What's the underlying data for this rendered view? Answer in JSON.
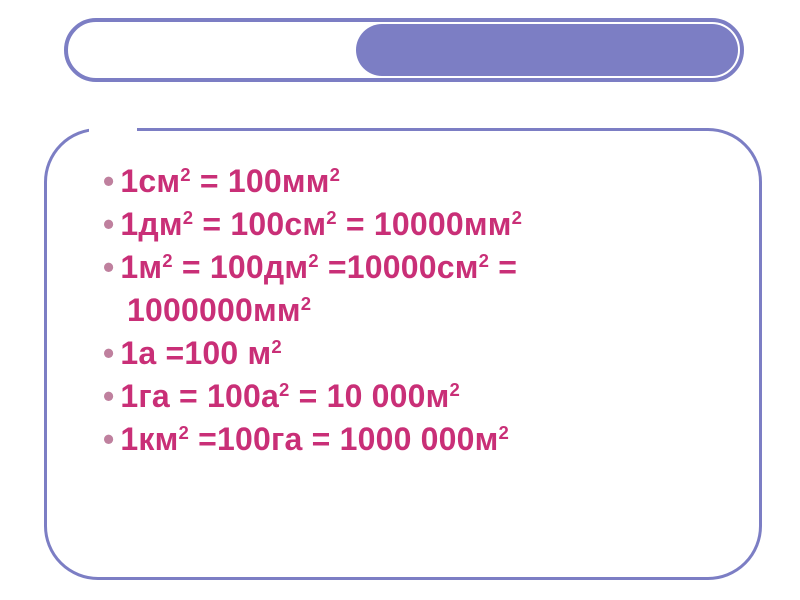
{
  "colors": {
    "header_border": "#7c7ec4",
    "header_fill": "#7c7ec4",
    "frame_border": "#7c7ec4",
    "bullet": "#bf809e",
    "text": "#c92f77",
    "background": "#ffffff"
  },
  "typography": {
    "font_family": "Arial, sans-serif",
    "font_size_pt": 24,
    "font_weight": "bold"
  },
  "layout": {
    "slide_width": 800,
    "slide_height": 600,
    "frame_radius": 54
  },
  "content": {
    "type": "bulleted-equations",
    "lines": [
      {
        "bullet": true,
        "html": "1см<sup>2</sup> = 100мм<sup>2</sup>"
      },
      {
        "bullet": true,
        "html": "1дм<sup>2</sup> = 100см<sup>2</sup> =  10000мм<sup>2</sup>"
      },
      {
        "bullet": true,
        "html": "1м<sup>2</sup> =  100дм<sup>2</sup> =10000см<sup>2</sup> ="
      },
      {
        "bullet": false,
        "html": "1000000мм<sup>2</sup>"
      },
      {
        "bullet": true,
        "html": "1а =100 м<sup>2</sup>"
      },
      {
        "bullet": true,
        "html": "1га = 100а<sup>2</sup> = 10 000м<sup>2</sup>"
      },
      {
        "bullet": true,
        "html": "1км<sup>2</sup> =100га = 1000 000м<sup>2</sup>"
      }
    ]
  }
}
